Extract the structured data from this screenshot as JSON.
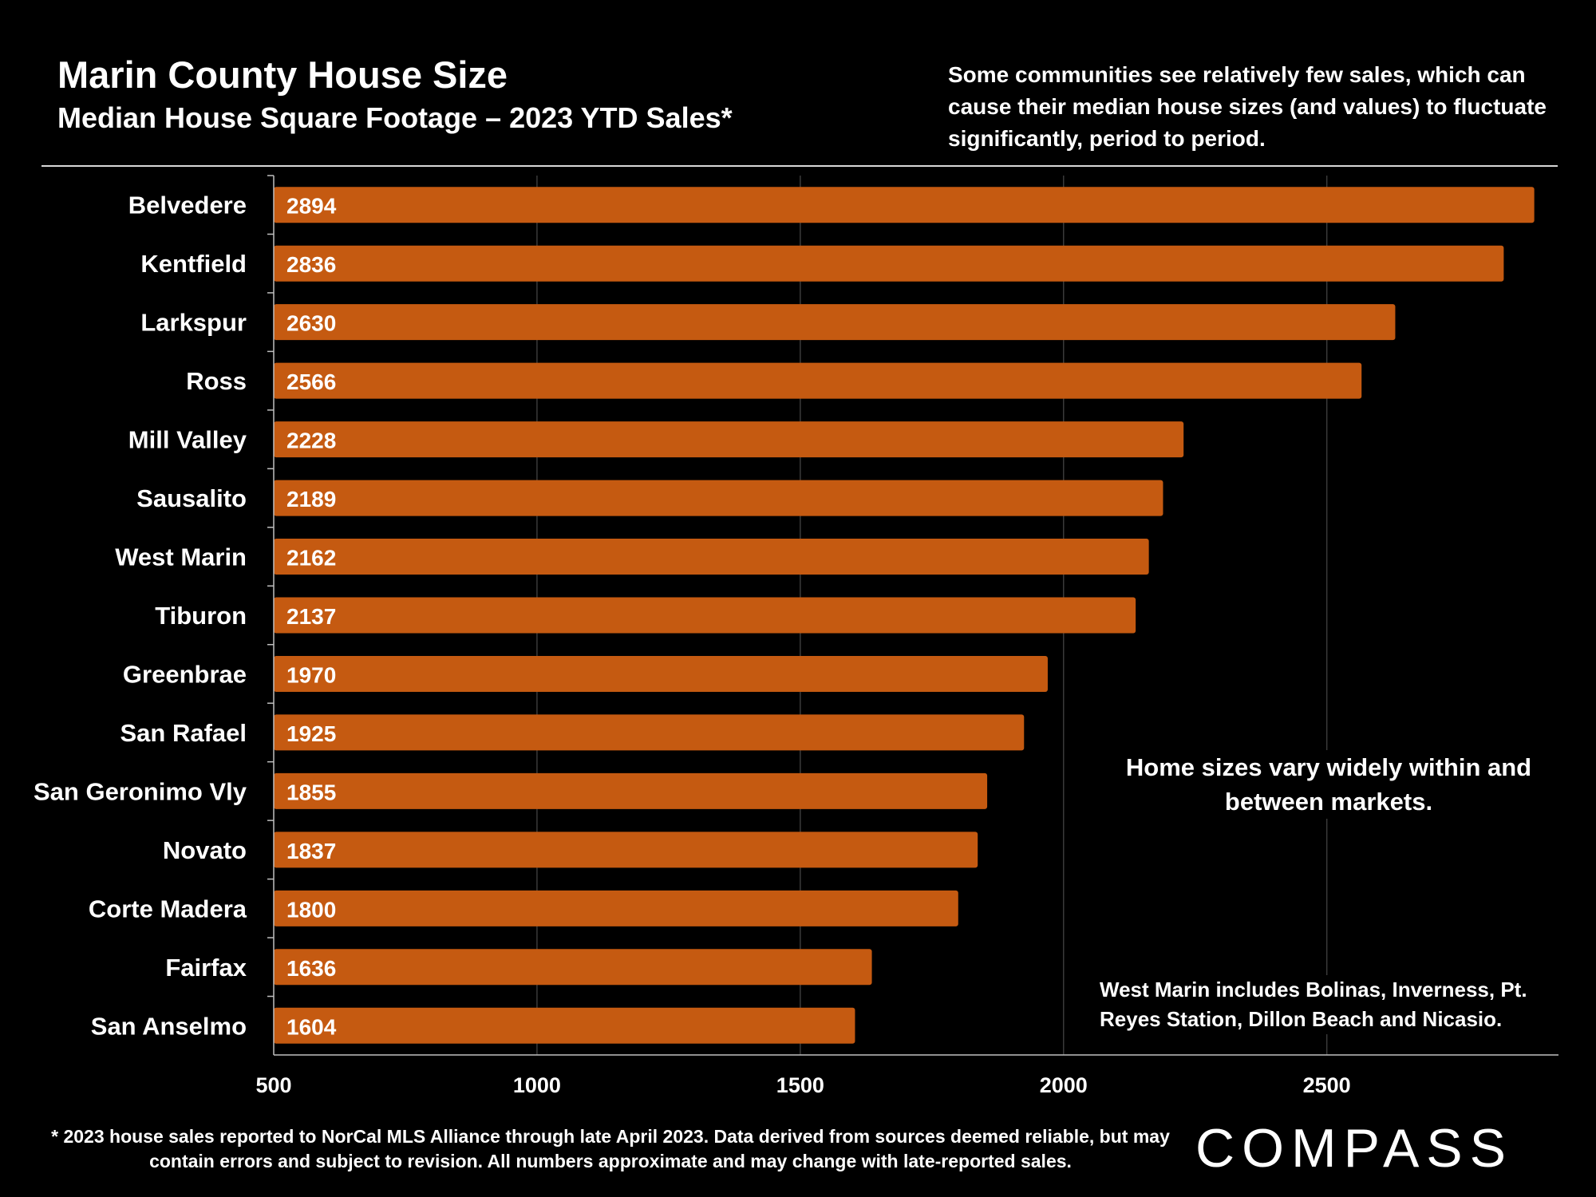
{
  "header": {
    "title": "Marin County House Size",
    "subtitle": "Median House Square Footage – 2023 YTD Sales*",
    "note": "Some communities see relatively few sales, which can cause their median house sizes (and values) to fluctuate significantly, period to period."
  },
  "annotations": {
    "mid": "Home sizes vary widely within and between markets.",
    "west_marin": "West Marin includes Bolinas, Inverness, Pt. Reyes Station, Dillon Beach and Nicasio."
  },
  "footnote": "* 2023 house sales reported to NorCal MLS Alliance through late April 2023. Data derived from sources deemed reliable, but may contain errors and subject to revision. All numbers approximate and may change with late-reported sales.",
  "logo": {
    "text": "COMPASS"
  },
  "colors": {
    "background": "#000000",
    "bar": "#c55a11",
    "text": "#ffffff",
    "gridline": "#3a3a3a",
    "axis": "#bfbfbf"
  },
  "chart_data": {
    "type": "bar",
    "orientation": "horizontal",
    "title": "Marin County House Size",
    "subtitle": "Median House Square Footage – 2023 YTD Sales*",
    "categories": [
      "Belvedere",
      "Kentfield",
      "Larkspur",
      "Ross",
      "Mill Valley",
      "Sausalito",
      "West Marin",
      "Tiburon",
      "Greenbrae",
      "San Rafael",
      "San Geronimo Vly",
      "Novato",
      "Corte Madera",
      "Fairfax",
      "San Anselmo"
    ],
    "values": [
      2894,
      2836,
      2630,
      2566,
      2228,
      2189,
      2162,
      2137,
      1970,
      1925,
      1855,
      1837,
      1800,
      1636,
      1604
    ],
    "xlim": [
      500,
      2940
    ],
    "xticks": [
      500,
      1000,
      1500,
      2000,
      2500
    ],
    "xlabel": "",
    "ylabel": "",
    "data_labels": true,
    "grid": true,
    "legend": "none"
  }
}
